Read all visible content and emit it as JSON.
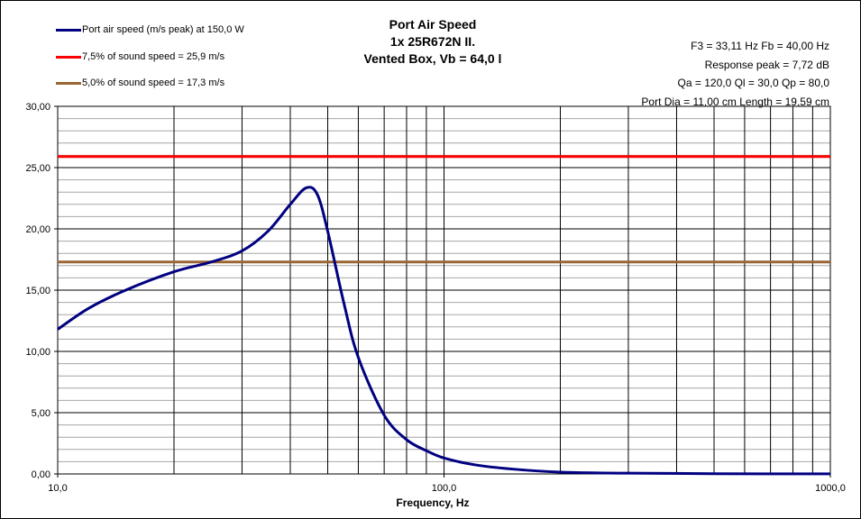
{
  "chart_data": {
    "type": "line",
    "title": [
      "Port Air  Speed",
      "1x 25R672N II.",
      "Vented Box, Vb = 64,0 l"
    ],
    "info": [
      "F3 = 33,11 Hz  Fb = 40,00 Hz",
      "Response  peak = 7,72 dB",
      "Qa = 120,0  Ql = 30,0  Qp = 80,0",
      "Port Dia = 11,00 cm  Length = 19,59 cm"
    ],
    "xlabel": "Frequency, Hz",
    "ylabel": "",
    "xscale": "log",
    "xlim": [
      10,
      1000
    ],
    "ylim": [
      0,
      30
    ],
    "x_ticks": [
      "10,0",
      "100,0",
      "1000,0"
    ],
    "y_ticks": [
      "0,00",
      "5,00",
      "10,00",
      "15,00",
      "20,00",
      "25,00",
      "30,00"
    ],
    "y_minor_step": 1,
    "grid": true,
    "legend_position": "top-left",
    "series": [
      {
        "name": "Port air speed (m/s peak) at 150,0 W",
        "color": "#000080",
        "x": [
          10,
          12,
          15,
          20,
          25,
          30,
          35,
          40,
          44,
          47,
          50,
          55,
          60,
          70,
          80,
          90,
          100,
          120,
          150,
          200,
          300,
          500,
          1000
        ],
        "y": [
          11.8,
          13.5,
          15.0,
          16.5,
          17.3,
          18.2,
          19.8,
          22.0,
          23.35,
          22.8,
          19.8,
          14.0,
          9.5,
          4.8,
          2.8,
          1.9,
          1.3,
          0.75,
          0.4,
          0.15,
          0.06,
          0.02,
          0.01
        ]
      },
      {
        "name": "7,5% of sound speed = 25,9 m/s",
        "color": "#ff0000",
        "x": [
          10,
          1000
        ],
        "y": [
          25.9,
          25.9
        ]
      },
      {
        "name": "5,0% of sound speed = 17,3 m/s",
        "color": "#996633",
        "x": [
          10,
          1000
        ],
        "y": [
          17.3,
          17.3
        ]
      }
    ]
  }
}
